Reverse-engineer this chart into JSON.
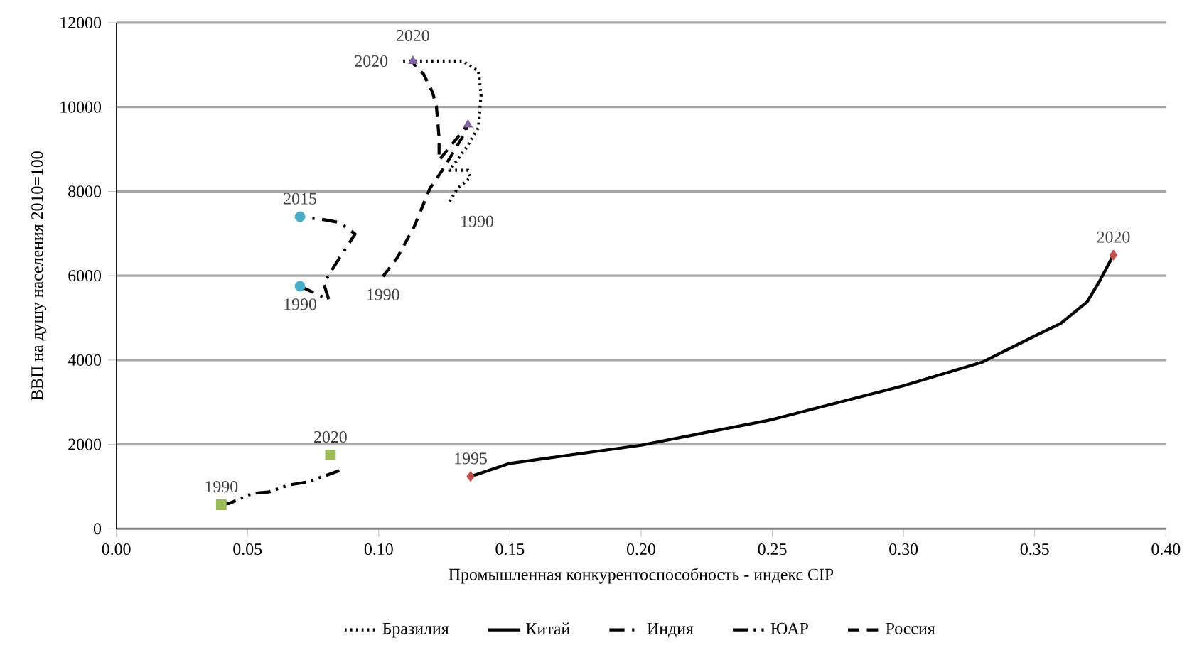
{
  "chart_data": {
    "type": "line",
    "xlabel": "Промышленная конкурентоспособность - индекс CIP",
    "ylabel": "ВВП на душу населения 2010=100",
    "xlim": [
      0,
      0.4
    ],
    "xticks": [
      {
        "value": 0,
        "label": "0.00"
      },
      {
        "value": 0.05,
        "label": "0.05"
      },
      {
        "value": 0.1,
        "label": "0.10"
      },
      {
        "value": 0.15,
        "label": "0.15"
      },
      {
        "value": 0.2,
        "label": "0.20"
      },
      {
        "value": 0.25,
        "label": "0.25"
      },
      {
        "value": 0.3,
        "label": "0.30"
      },
      {
        "value": 0.35,
        "label": "0.35"
      },
      {
        "value": 0.4,
        "label": "0.40"
      }
    ],
    "ylim": [
      0,
      12000
    ],
    "yticks": [
      0,
      2000,
      4000,
      6000,
      8000,
      10000,
      12000
    ],
    "grid": "y",
    "legend": "bottom",
    "series": [
      {
        "name": "Бразилия",
        "color": "#000000",
        "line_style": "dotted",
        "x": [
          0.127,
          0.13,
          0.135,
          0.134,
          0.127,
          0.133,
          0.138,
          0.139,
          0.138,
          0.132,
          0.122,
          0.109
        ],
        "values": [
          7760,
          8070,
          8330,
          8500,
          8500,
          9000,
          9510,
          10290,
          10850,
          11090,
          11090,
          11090
        ]
      },
      {
        "name": "Китай",
        "color": "#000000",
        "line_style": "solid",
        "x": [
          0.135,
          0.15,
          0.2,
          0.25,
          0.3,
          0.33,
          0.35,
          0.36,
          0.37,
          0.375,
          0.38
        ],
        "values": [
          1240,
          1550,
          1980,
          2590,
          3390,
          3950,
          4570,
          4870,
          5380,
          5900,
          6490
        ]
      },
      {
        "name": "Индия",
        "color": "#000000",
        "line_style": "dashdot",
        "x": [
          0.07,
          0.081,
          0.079,
          0.083,
          0.091,
          0.085,
          0.079,
          0.07
        ],
        "values": [
          5750,
          5430,
          5820,
          6220,
          6990,
          7260,
          7330,
          7400
        ]
      },
      {
        "name": "ЮАР",
        "color": "#000000",
        "line_style": "dashdotdot",
        "x": [
          0.04,
          0.043,
          0.052,
          0.058,
          0.066,
          0.073,
          0.085
        ],
        "values": [
          570,
          600,
          840,
          870,
          1040,
          1110,
          1380
        ]
      },
      {
        "name": "Россия",
        "color": "#000000",
        "line_style": "dashed",
        "x": [
          0.1016,
          0.107,
          0.1135,
          0.1195,
          0.125,
          0.1324,
          0.134,
          0.123,
          0.123,
          0.122,
          0.1205,
          0.117,
          0.114,
          0.113
        ],
        "values": [
          5980,
          6420,
          7160,
          8070,
          8570,
          9340,
          9580,
          8740,
          9270,
          10010,
          10350,
          10790,
          10950,
          11090
        ]
      },
      {
        "type": "scatter",
        "marker": "triangle",
        "color": "#8064a2",
        "x": [
          0.134,
          0.113
        ],
        "values": [
          9580,
          11090
        ]
      },
      {
        "type": "scatter",
        "marker": "circle",
        "color": "#4bacc6",
        "x": [
          0.07,
          0.07
        ],
        "values": [
          5750,
          7400
        ]
      },
      {
        "type": "scatter",
        "marker": "square",
        "color": "#9bbb59",
        "x": [
          0.04,
          0.0816
        ],
        "values": [
          570,
          1750
        ]
      },
      {
        "type": "scatter",
        "marker": "diamond",
        "color": "#c0504d",
        "x": [
          0.135,
          0.38
        ],
        "values": [
          1240,
          6490
        ]
      }
    ],
    "annotations": [
      {
        "text": "1990",
        "x": 0.127,
        "y": 7760
      },
      {
        "text": "2020",
        "x": 0.109,
        "y": 11090
      },
      {
        "text": "1990",
        "x": 0.1016,
        "y": 5980
      },
      {
        "text": "2020",
        "x": 0.113,
        "y": 11090
      },
      {
        "text": "1990",
        "x": 0.07,
        "y": 5750
      },
      {
        "text": "2015",
        "x": 0.07,
        "y": 7400
      },
      {
        "text": "1990",
        "x": 0.04,
        "y": 570
      },
      {
        "text": "2020",
        "x": 0.0816,
        "y": 1750
      },
      {
        "text": "1995",
        "x": 0.135,
        "y": 1240
      },
      {
        "text": "2020",
        "x": 0.38,
        "y": 6490
      }
    ]
  }
}
